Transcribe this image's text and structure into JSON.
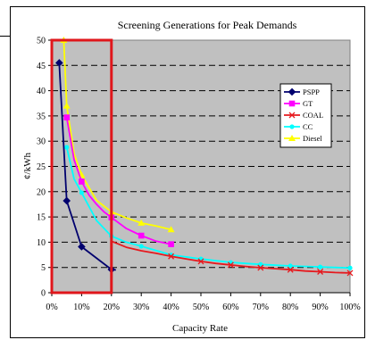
{
  "chart_data": {
    "type": "line",
    "title": "Screening Generations for Peak Demands",
    "xlabel": "Capacity Rate",
    "ylabel": "¢/kWh",
    "xlim": [
      0,
      100
    ],
    "ylim": [
      0,
      50
    ],
    "xticks": [
      0,
      10,
      20,
      30,
      40,
      50,
      60,
      70,
      80,
      90,
      100
    ],
    "xtick_labels": [
      "0%",
      "10%",
      "20%",
      "30%",
      "40%",
      "50%",
      "60%",
      "70%",
      "80%",
      "90%",
      "100%"
    ],
    "yticks": [
      0,
      5,
      10,
      15,
      20,
      25,
      30,
      35,
      40,
      45,
      50
    ],
    "ytick_labels": [
      "0",
      "5",
      "10",
      "15",
      "20",
      "25",
      "30",
      "35",
      "40",
      "45",
      "50"
    ],
    "grid": "horizontal dashed",
    "legend_position": "right",
    "highlight": {
      "x_from": 0,
      "x_to": 20,
      "color": "#e0161b"
    },
    "plot_background": "#c0c0c0",
    "series": [
      {
        "name": "PSPP",
        "color": "#00006e",
        "marker": "diamond",
        "x": [
          2.5,
          5,
          10,
          20,
          21.5
        ],
        "y": [
          45.5,
          18.2,
          9.1,
          4.6,
          4.5
        ],
        "marked": [
          true,
          true,
          true,
          true,
          false
        ]
      },
      {
        "name": "GT",
        "color": "#ff00ff",
        "marker": "square",
        "x": [
          5,
          7.5,
          10,
          12.5,
          15,
          17.5,
          20,
          25,
          30,
          35,
          40
        ],
        "y": [
          34.7,
          26.3,
          22,
          19.3,
          17.5,
          16,
          14.9,
          12.7,
          11.3,
          10.2,
          9.6
        ],
        "marked": [
          true,
          false,
          true,
          false,
          false,
          false,
          true,
          false,
          true,
          false,
          true
        ]
      },
      {
        "name": "COAL",
        "color": "#e6191e",
        "marker": "x",
        "x": [
          20,
          25,
          30,
          35,
          40,
          45,
          50,
          55,
          60,
          65,
          70,
          75,
          80,
          85,
          90,
          95,
          100
        ],
        "y": [
          10.2,
          9,
          8.3,
          7.8,
          7.2,
          6.7,
          6.2,
          5.8,
          5.5,
          5.2,
          4.95,
          4.75,
          4.55,
          4.3,
          4.15,
          4,
          3.9
        ],
        "marked": [
          false,
          false,
          false,
          false,
          true,
          false,
          true,
          false,
          true,
          false,
          true,
          false,
          true,
          false,
          true,
          false,
          true
        ]
      },
      {
        "name": "CC",
        "color": "#00ffff",
        "marker": "circle",
        "x": [
          5,
          7.5,
          10,
          15,
          20,
          25,
          30,
          40,
          50,
          60,
          70,
          80,
          90,
          100
        ],
        "y": [
          28.8,
          22.5,
          19.8,
          14.3,
          11.2,
          10,
          9.2,
          7.5,
          6.7,
          6,
          5.6,
          5.3,
          5.1,
          4.9
        ],
        "marked": [
          true,
          false,
          true,
          false,
          true,
          false,
          true,
          true,
          true,
          true,
          true,
          true,
          true,
          true
        ]
      },
      {
        "name": "Diesel",
        "color": "#ffff00",
        "marker": "triangle",
        "x": [
          4,
          5,
          7.5,
          10,
          15,
          20,
          25,
          30,
          35,
          40
        ],
        "y": [
          50,
          37,
          27.5,
          23.3,
          18.3,
          16,
          14.8,
          13.8,
          13.2,
          12.5
        ],
        "marked": [
          true,
          true,
          false,
          true,
          false,
          true,
          false,
          true,
          false,
          true
        ]
      }
    ]
  }
}
